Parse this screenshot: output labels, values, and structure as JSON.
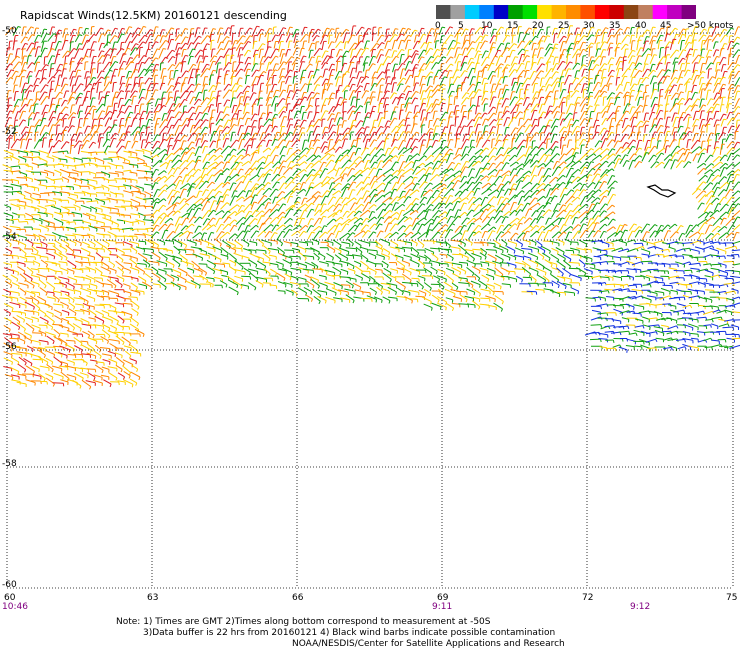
{
  "title": "Rapidscat Winds(12.5KM) 20160121 descending",
  "legend": {
    "labels": [
      "0",
      "5",
      "10",
      "15",
      "20",
      "25",
      "30",
      "35",
      "40",
      "45",
      ">50 knots"
    ],
    "colors": [
      "#505050",
      "#a0a0a0",
      "#00ccff",
      "#0080ff",
      "#0000c8",
      "#00a000",
      "#00e000",
      "#ffe000",
      "#ffb400",
      "#ff8c00",
      "#ff5000",
      "#ff0000",
      "#cc0000",
      "#8b4513",
      "#c08060",
      "#ff00ff",
      "#c000c0",
      "#800080"
    ]
  },
  "axes": {
    "lon_labels": [
      "60",
      "63",
      "66",
      "69",
      "72",
      "75"
    ],
    "lat_labels": [
      "-50",
      "-52",
      "-54",
      "-56",
      "-58",
      "-60"
    ]
  },
  "times": [
    "10:46",
    "9:11",
    "9:12"
  ],
  "notes": [
    "Note: 1) Times are GMT 2)Times along bottom correspond to measurement at -50S",
    "3)Data buffer is 22 hrs from 20160121 4) Black wind barbs indicate possible contamination",
    "NOAA/NESDIS/Center for Satellite Applications and Research"
  ],
  "speed_colors": {
    "red": "#e02020",
    "orange": "#ff8800",
    "yellow": "#ffd000",
    "green": "#10a010",
    "blue": "#1030e0",
    "black": "#000000"
  }
}
